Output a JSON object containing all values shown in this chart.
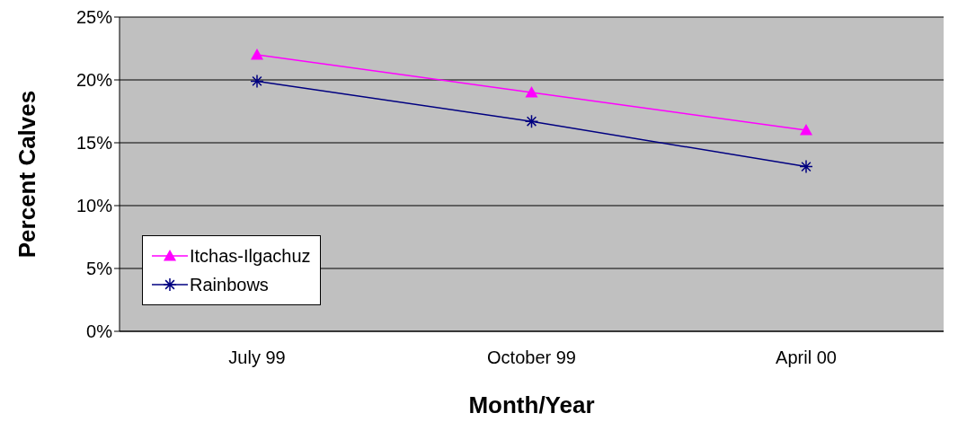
{
  "chart_data": {
    "type": "line",
    "xlabel": "Month/Year",
    "ylabel": "Percent Calves",
    "categories": [
      "July 99",
      "October 99",
      "April 00"
    ],
    "series": [
      {
        "name": "Itchas-Ilgachuz",
        "color": "#ff00ff",
        "values": [
          22,
          19,
          16
        ],
        "marker": "triangle"
      },
      {
        "name": "Rainbows",
        "color": "#000080",
        "values": [
          19.9,
          16.7,
          13.1
        ],
        "marker": "cross"
      }
    ],
    "ylim": [
      0,
      25
    ],
    "yticks": [
      {
        "value": 0,
        "label": "0%"
      },
      {
        "value": 5,
        "label": "5%"
      },
      {
        "value": 10,
        "label": "10%"
      },
      {
        "value": 15,
        "label": "15%"
      },
      {
        "value": 20,
        "label": "20%"
      },
      {
        "value": 25,
        "label": "25%"
      }
    ],
    "grid": "y",
    "legend": "bottom left",
    "line_style": "solid"
  }
}
